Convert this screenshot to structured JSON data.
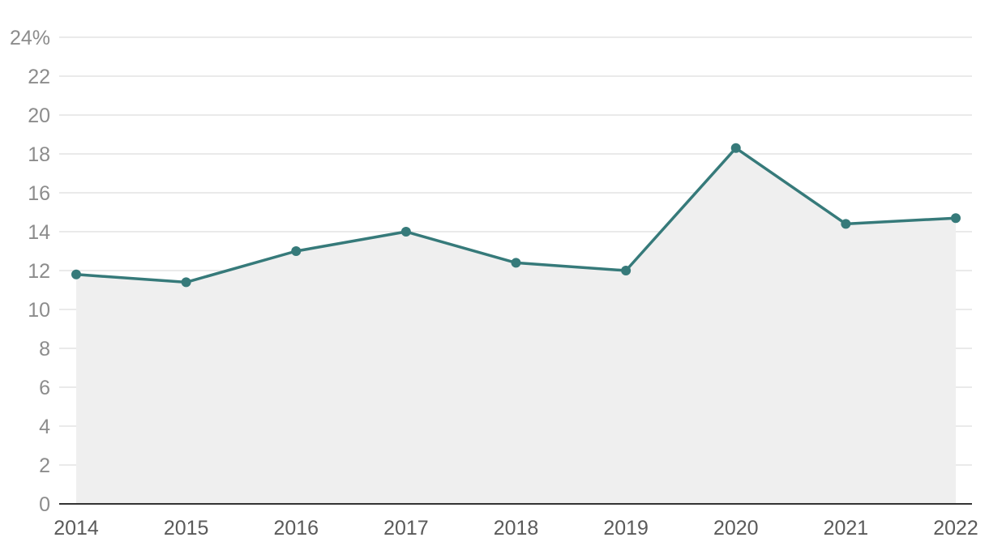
{
  "chart_data": {
    "type": "line",
    "x": [
      "2014",
      "2015",
      "2016",
      "2017",
      "2018",
      "2019",
      "2020",
      "2021",
      "2022"
    ],
    "series": [
      {
        "values": [
          11.8,
          11.4,
          13.0,
          14.0,
          12.4,
          12.0,
          18.3,
          14.4,
          14.7
        ],
        "color": "#367a7a",
        "area_fill": "#efefef"
      }
    ],
    "y_ticks": [
      "0",
      "2",
      "4",
      "6",
      "8",
      "10",
      "12",
      "14",
      "16",
      "18",
      "20",
      "22",
      "24%"
    ],
    "ylim": [
      0,
      24
    ],
    "grid": true,
    "legend": "none",
    "title": "",
    "xlabel": "",
    "ylabel": ""
  }
}
